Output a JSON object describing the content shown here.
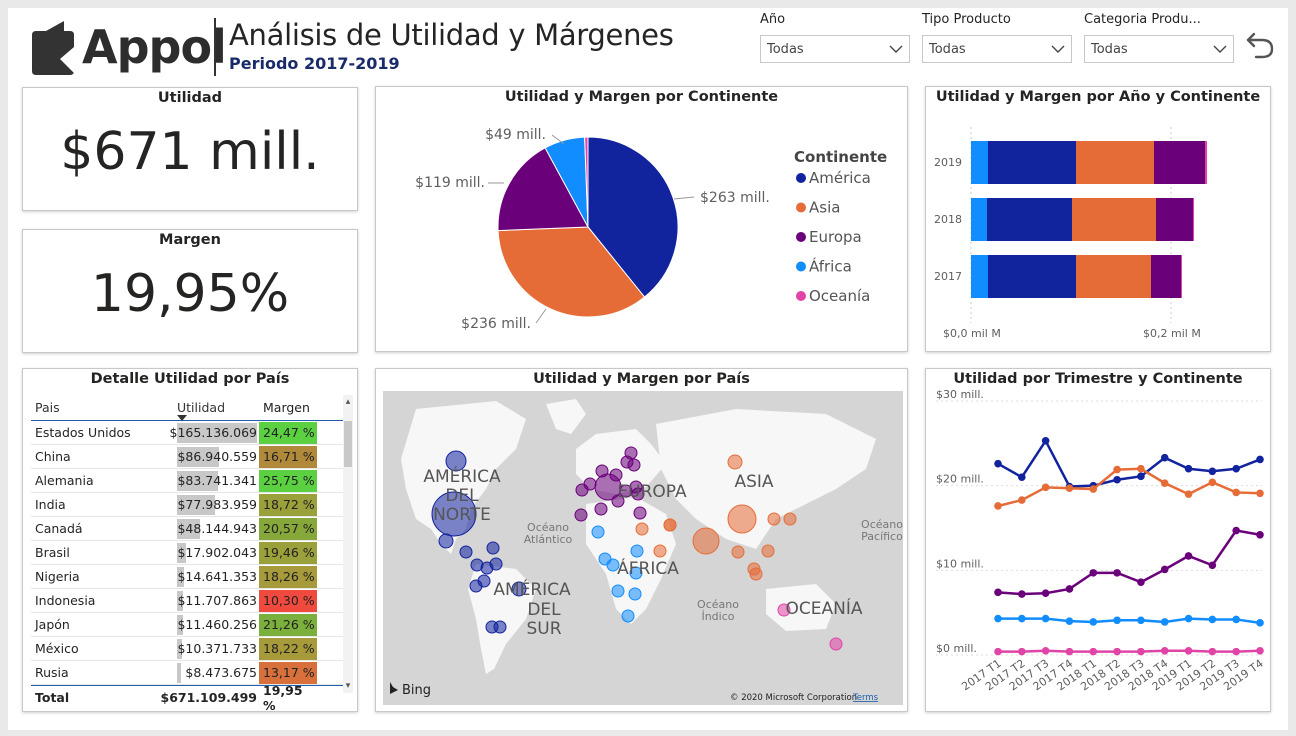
{
  "header": {
    "logo_text": "Appol",
    "title": "Análisis de Utilidad y Márgenes",
    "subtitle": "Periodo 2017-2019"
  },
  "slicers": [
    {
      "label": "Año",
      "value": "Todas"
    },
    {
      "label": "Tipo Producto",
      "value": "Todas"
    },
    {
      "label": "Categoria Produ...",
      "value": "Todas"
    }
  ],
  "kpis": {
    "utilidad": {
      "title": "Utilidad",
      "value": "$671 mill."
    },
    "margen": {
      "title": "Margen",
      "value": "19,95%"
    }
  },
  "colors": {
    "america": "#12239e",
    "asia": "#e66c37",
    "europa": "#6b007b",
    "africa": "#118dff",
    "oceania": "#e044a7",
    "margin_green": "#5bd142",
    "margin_olive": "#9aa03a",
    "margin_brown": "#b08a3a",
    "margin_red": "#f04a3f"
  },
  "pie": {
    "title": "Utilidad y Margen por Continente",
    "legend_title": "Continente",
    "slices": [
      {
        "name": "América",
        "value": 263,
        "label": "$263 mill.",
        "color": "#12239e"
      },
      {
        "name": "Asia",
        "value": 236,
        "label": "$236 mill.",
        "color": "#e66c37"
      },
      {
        "name": "Europa",
        "value": 119,
        "label": "$119 mill.",
        "color": "#6b007b"
      },
      {
        "name": "África",
        "value": 49,
        "label": "$49 mill.",
        "color": "#118dff"
      },
      {
        "name": "Oceanía",
        "value": 4,
        "label": "",
        "color": "#e044a7"
      }
    ]
  },
  "stacked": {
    "title": "Utilidad y Margen por Año y Continente",
    "x_ticks": [
      "$0,0 mil M",
      "$0,2 mil M"
    ],
    "x_tick_values": [
      0,
      200
    ],
    "x_max": 280,
    "rows": [
      {
        "year": "2019",
        "values": [
          {
            "name": "África",
            "v": 17
          },
          {
            "name": "América",
            "v": 88
          },
          {
            "name": "Asia",
            "v": 78
          },
          {
            "name": "Europa",
            "v": 51
          },
          {
            "name": "Oceanía",
            "v": 2
          }
        ]
      },
      {
        "year": "2018",
        "values": [
          {
            "name": "África",
            "v": 16
          },
          {
            "name": "América",
            "v": 85
          },
          {
            "name": "Asia",
            "v": 84
          },
          {
            "name": "Europa",
            "v": 37
          },
          {
            "name": "Oceanía",
            "v": 1
          }
        ]
      },
      {
        "year": "2017",
        "values": [
          {
            "name": "África",
            "v": 17
          },
          {
            "name": "América",
            "v": 88
          },
          {
            "name": "Asia",
            "v": 75
          },
          {
            "name": "Europa",
            "v": 30
          },
          {
            "name": "Oceanía",
            "v": 1
          }
        ]
      }
    ]
  },
  "table": {
    "title": "Detalle Utilidad por País",
    "headers": {
      "pais": "Pais",
      "utilidad": "Utilidad",
      "margen": "Margen"
    },
    "max_utilidad": 165136069,
    "rows": [
      {
        "pais": "Estados Unidos",
        "utilidad": "$165.136.069",
        "u": 165136069,
        "margen": "24,47 %",
        "color": "#5bd142"
      },
      {
        "pais": "China",
        "utilidad": "$86.940.559",
        "u": 86940559,
        "margen": "16,71 %",
        "color": "#b08a3a"
      },
      {
        "pais": "Alemania",
        "utilidad": "$83.741.341",
        "u": 83741341,
        "margen": "25,75 %",
        "color": "#5bd142"
      },
      {
        "pais": "India",
        "utilidad": "$77.983.959",
        "u": 77983959,
        "margen": "18,72 %",
        "color": "#9aa03a"
      },
      {
        "pais": "Canadá",
        "utilidad": "$48.144.943",
        "u": 48144943,
        "margen": "20,57 %",
        "color": "#86a83a"
      },
      {
        "pais": "Brasil",
        "utilidad": "$17.902.043",
        "u": 17902043,
        "margen": "19,46 %",
        "color": "#9aa03a"
      },
      {
        "pais": "Nigeria",
        "utilidad": "$14.641.353",
        "u": 14641353,
        "margen": "18,26 %",
        "color": "#a69a3a"
      },
      {
        "pais": "Indonesia",
        "utilidad": "$11.707.863",
        "u": 11707863,
        "margen": "10,30 %",
        "color": "#f04a3f"
      },
      {
        "pais": "Japón",
        "utilidad": "$11.460.256",
        "u": 11460256,
        "margen": "21,26 %",
        "color": "#7bb03c"
      },
      {
        "pais": "México",
        "utilidad": "$10.371.733",
        "u": 10371733,
        "margen": "18,22 %",
        "color": "#a69a3a"
      },
      {
        "pais": "Rusia",
        "utilidad": "$8.473.675",
        "u": 8473675,
        "margen": "13,17 %",
        "color": "#d8703c"
      }
    ],
    "total": {
      "label": "Total",
      "utilidad": "$671.109.499",
      "margen": "19,95 %"
    }
  },
  "map": {
    "title": "Utilidad y Margen por País",
    "labels": {
      "america_norte": [
        "AMÉRICA",
        "DEL",
        "NORTE"
      ],
      "america_sur": [
        "AMÉRICA",
        "DEL",
        "SUR"
      ],
      "europa": "EUROPA",
      "asia": "ASIA",
      "africa": "ÁFRICA",
      "oceania": "OCEANÍA",
      "oceano_atlantico": [
        "Océano",
        "Atlántico"
      ],
      "oceano_pacifico": [
        "Océano",
        "Pacífico"
      ],
      "oceano_indico": [
        "Océano",
        "Índico"
      ]
    },
    "bing": "Bing",
    "copyright": "© 2020 Microsoft Corporation",
    "terms": "Terms"
  },
  "line": {
    "title": "Utilidad por Trimestre y Continente",
    "y_ticks": [
      "$30 mill.",
      "$20 mill.",
      "$10 mill.",
      "$0 mill."
    ],
    "y_tick_values": [
      30,
      20,
      10,
      0
    ],
    "y_max": 30,
    "categories": [
      "2017 T1",
      "2017 T2",
      "2017 T3",
      "2017 T4",
      "2018 T1",
      "2018 T2",
      "2018 T3",
      "2018 T4",
      "2019 T1",
      "2019 T2",
      "2019 T3",
      "2019 T4"
    ],
    "series": [
      {
        "name": "América",
        "color": "#12239e",
        "values": [
          22.6,
          21.0,
          25.3,
          19.9,
          20.0,
          20.7,
          21.1,
          23.3,
          22.0,
          21.7,
          22.0,
          23.1
        ]
      },
      {
        "name": "Asia",
        "color": "#e66c37",
        "values": [
          17.6,
          18.3,
          19.8,
          19.7,
          19.6,
          21.9,
          22.0,
          20.3,
          19.0,
          20.4,
          19.2,
          19.1
        ]
      },
      {
        "name": "Europa",
        "color": "#6b007b",
        "values": [
          7.4,
          7.2,
          7.3,
          7.8,
          9.7,
          9.7,
          8.6,
          10.1,
          11.7,
          10.6,
          14.7,
          14.2
        ]
      },
      {
        "name": "África",
        "color": "#118dff",
        "values": [
          4.3,
          4.3,
          4.3,
          4.0,
          3.9,
          4.1,
          4.1,
          3.9,
          4.3,
          4.2,
          4.2,
          3.8
        ]
      },
      {
        "name": "Oceanía",
        "color": "#e044a7",
        "values": [
          0.4,
          0.4,
          0.5,
          0.4,
          0.4,
          0.4,
          0.4,
          0.5,
          0.5,
          0.4,
          0.4,
          0.5
        ]
      }
    ]
  }
}
